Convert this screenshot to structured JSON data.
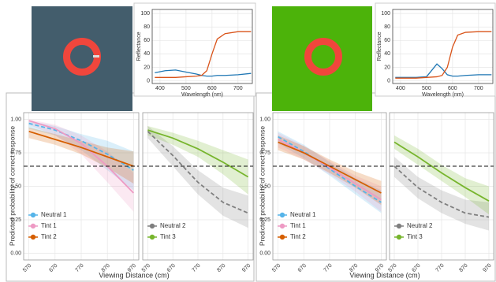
{
  "chart_data": [
    {
      "type": "line",
      "y_label": "Reflectance",
      "x_label": "Wavelength (nm)",
      "x": [
        380,
        420,
        460,
        500,
        540,
        560,
        580,
        600,
        620,
        650,
        700,
        750
      ],
      "xlim": [
        370,
        755
      ],
      "xticks": [
        400,
        500,
        600,
        700
      ],
      "ylim": [
        -4,
        106
      ],
      "yticks": [
        0,
        20,
        40,
        60,
        80,
        100
      ],
      "grid": true,
      "series": [
        {
          "color": "#1f77b4",
          "values": [
            12,
            15,
            16,
            13,
            10,
            8,
            7,
            7,
            8,
            8,
            9,
            11
          ]
        },
        {
          "color": "#d95319",
          "values": [
            5,
            5,
            5,
            6,
            7,
            8,
            15,
            40,
            62,
            70,
            73,
            73
          ]
        }
      ]
    },
    {
      "type": "line",
      "y_label": "Reflectance",
      "x_label": "Wavelength (nm)",
      "x": [
        380,
        420,
        460,
        500,
        540,
        560,
        580,
        600,
        620,
        650,
        700,
        750
      ],
      "xlim": [
        370,
        755
      ],
      "xticks": [
        400,
        500,
        600,
        700
      ],
      "ylim": [
        -4,
        106
      ],
      "yticks": [
        0,
        20,
        40,
        60,
        80,
        100
      ],
      "grid": true,
      "series": [
        {
          "color": "#1f77b4",
          "values": [
            5,
            5,
            5,
            6,
            25,
            18,
            9,
            7,
            7,
            8,
            9,
            9
          ]
        },
        {
          "color": "#d95319",
          "values": [
            4,
            4,
            4,
            5,
            6,
            8,
            20,
            50,
            68,
            72,
            73,
            73
          ]
        }
      ]
    },
    {
      "type": "band",
      "y_label": "Predicted probability of correct response",
      "x_label": "Viewing Distance (cm)",
      "x": [
        570,
        670,
        770,
        870,
        970
      ],
      "xlim": [
        550,
        990
      ],
      "xticks": [
        570,
        670,
        770,
        870,
        970
      ],
      "ylim": [
        -0.05,
        1.05
      ],
      "yticks": [
        {
          "value": 0,
          "label": "0.00"
        },
        {
          "value": 0.25,
          "label": "0.25"
        },
        {
          "value": 0.5,
          "label": "0.50"
        },
        {
          "value": 0.75,
          "label": "0.75"
        },
        {
          "value": 1,
          "label": "1.00"
        }
      ],
      "hline": 0.65,
      "grid": true,
      "series": [
        {
          "name": "Neutral 1",
          "color": "#56b4e9",
          "dashed": true,
          "values": [
            0.97,
            0.92,
            0.84,
            0.74,
            0.62
          ],
          "lower": [
            0.93,
            0.88,
            0.77,
            0.62,
            0.47
          ],
          "upper": [
            0.99,
            0.95,
            0.89,
            0.84,
            0.76
          ]
        },
        {
          "name": "Tint 1",
          "color": "#ee9ac4",
          "dashed": false,
          "values": [
            0.99,
            0.93,
            0.82,
            0.65,
            0.45
          ],
          "lower": [
            0.96,
            0.88,
            0.74,
            0.53,
            0.31
          ],
          "upper": [
            1.0,
            0.96,
            0.88,
            0.76,
            0.6
          ]
        },
        {
          "name": "Tint 2",
          "color": "#d55e00",
          "dashed": false,
          "values": [
            0.91,
            0.85,
            0.79,
            0.72,
            0.65
          ],
          "lower": [
            0.86,
            0.81,
            0.74,
            0.64,
            0.52
          ],
          "upper": [
            0.94,
            0.89,
            0.84,
            0.79,
            0.76
          ]
        }
      ]
    },
    {
      "type": "band",
      "x": [
        570,
        670,
        770,
        870,
        970
      ],
      "xlim": [
        550,
        990
      ],
      "xticks": [
        570,
        670,
        770,
        870,
        970
      ],
      "ylim": [
        -0.05,
        1.05
      ],
      "yticks": [
        0,
        0.25,
        0.5,
        0.75,
        1
      ],
      "hline": 0.65,
      "grid": true,
      "series": [
        {
          "name": "Neutral 2",
          "color": "#7f7f7f",
          "dashed": true,
          "values": [
            0.91,
            0.73,
            0.53,
            0.38,
            0.3
          ],
          "lower": [
            0.86,
            0.65,
            0.44,
            0.28,
            0.19
          ],
          "upper": [
            0.95,
            0.8,
            0.62,
            0.49,
            0.43
          ]
        },
        {
          "name": "Tint 3",
          "color": "#77b52d",
          "dashed": false,
          "values": [
            0.92,
            0.86,
            0.78,
            0.68,
            0.57
          ],
          "lower": [
            0.88,
            0.81,
            0.72,
            0.59,
            0.44
          ],
          "upper": [
            0.95,
            0.9,
            0.84,
            0.77,
            0.7
          ]
        }
      ]
    },
    {
      "type": "band",
      "y_label": "Predicted probability of correct response",
      "x_label": "Viewing Distance (cm)",
      "x": [
        570,
        670,
        770,
        870,
        970
      ],
      "xlim": [
        550,
        990
      ],
      "xticks": [
        570,
        670,
        770,
        870,
        970
      ],
      "ylim": [
        -0.05,
        1.05
      ],
      "yticks": [
        {
          "value": 0,
          "label": "0.00"
        },
        {
          "value": 0.25,
          "label": "0.25"
        },
        {
          "value": 0.5,
          "label": "0.50"
        },
        {
          "value": 0.75,
          "label": "0.75"
        },
        {
          "value": 1,
          "label": "1.00"
        }
      ],
      "hline": 0.65,
      "grid": true,
      "series": [
        {
          "name": "Neutral 1",
          "color": "#56b4e9",
          "dashed": true,
          "values": [
            0.87,
            0.76,
            0.63,
            0.5,
            0.38
          ],
          "lower": [
            0.82,
            0.71,
            0.58,
            0.44,
            0.3
          ],
          "upper": [
            0.91,
            0.81,
            0.68,
            0.56,
            0.47
          ]
        },
        {
          "name": "Tint 1",
          "color": "#ee9ac4",
          "dashed": false,
          "values": [
            0.85,
            0.75,
            0.64,
            0.52,
            0.4
          ],
          "lower": [
            0.79,
            0.7,
            0.59,
            0.46,
            0.31
          ],
          "upper": [
            0.9,
            0.8,
            0.69,
            0.58,
            0.5
          ]
        },
        {
          "name": "Tint 2",
          "color": "#d55e00",
          "dashed": false,
          "values": [
            0.83,
            0.75,
            0.65,
            0.55,
            0.45
          ],
          "lower": [
            0.77,
            0.7,
            0.6,
            0.49,
            0.36
          ],
          "upper": [
            0.88,
            0.8,
            0.7,
            0.61,
            0.54
          ]
        }
      ]
    },
    {
      "type": "band",
      "x": [
        570,
        670,
        770,
        870,
        970
      ],
      "xlim": [
        550,
        990
      ],
      "xticks": [
        570,
        670,
        770,
        870,
        970
      ],
      "ylim": [
        -0.05,
        1.05
      ],
      "yticks": [
        0,
        0.25,
        0.5,
        0.75,
        1
      ],
      "hline": 0.65,
      "grid": true,
      "series": [
        {
          "name": "Neutral 2",
          "color": "#7f7f7f",
          "dashed": true,
          "values": [
            0.65,
            0.49,
            0.38,
            0.3,
            0.27
          ],
          "lower": [
            0.57,
            0.41,
            0.3,
            0.22,
            0.17
          ],
          "upper": [
            0.72,
            0.57,
            0.47,
            0.4,
            0.38
          ]
        },
        {
          "name": "Tint 3",
          "color": "#77b52d",
          "dashed": false,
          "values": [
            0.83,
            0.72,
            0.6,
            0.49,
            0.39
          ],
          "lower": [
            0.78,
            0.66,
            0.54,
            0.42,
            0.29
          ],
          "upper": [
            0.88,
            0.78,
            0.66,
            0.56,
            0.5
          ]
        }
      ]
    }
  ]
}
